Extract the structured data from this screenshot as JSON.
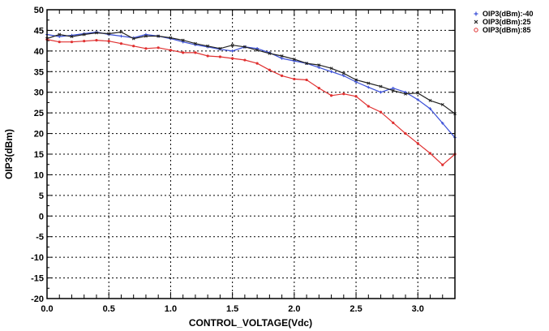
{
  "chart_data": {
    "type": "line",
    "xlabel": "CONTROL_VOLTAGE(Vdc)",
    "ylabel": "OIP3(dBm)",
    "xlim": [
      0,
      3.3
    ],
    "ylim": [
      -20,
      50
    ],
    "xticks": [
      0.0,
      0.5,
      1.0,
      1.5,
      2.0,
      2.5,
      3.0
    ],
    "xtick_labels": [
      "0.0",
      "0.5",
      "1.0",
      "1.5",
      "2.0",
      "2.5",
      "3.0"
    ],
    "yticks": [
      -20,
      -15,
      -10,
      -5,
      0,
      5,
      10,
      15,
      20,
      25,
      30,
      35,
      40,
      45,
      50
    ],
    "ytick_labels": [
      "-20",
      "-15",
      "-10",
      "-5",
      "0",
      "5",
      "10",
      "15",
      "20",
      "25",
      "30",
      "35",
      "40",
      "45",
      "50"
    ],
    "grid": true,
    "legend_position": "top-right-outside",
    "series": [
      {
        "name": "OIP3(dBm):-40",
        "color": "#3a4fd8",
        "marker": "+",
        "x": [
          0,
          0.1,
          0.2,
          0.3,
          0.4,
          0.5,
          0.6,
          0.7,
          0.8,
          0.9,
          1.0,
          1.1,
          1.2,
          1.3,
          1.4,
          1.5,
          1.6,
          1.7,
          1.8,
          1.9,
          2.0,
          2.1,
          2.2,
          2.3,
          2.4,
          2.5,
          2.6,
          2.7,
          2.8,
          2.9,
          3.0,
          3.1,
          3.2,
          3.3
        ],
        "y": [
          44.0,
          43.5,
          43.8,
          44.2,
          44.6,
          44.0,
          43.6,
          43.2,
          44.0,
          43.6,
          43.0,
          42.2,
          41.5,
          41.0,
          40.4,
          40.0,
          41.0,
          40.6,
          39.6,
          38.2,
          37.6,
          37.0,
          36.0,
          35.0,
          34.0,
          32.5,
          31.2,
          30.0,
          31.0,
          30.0,
          28.2,
          26.0,
          22.5,
          19.0
        ]
      },
      {
        "name": "OIP3(dBm):25",
        "color": "#222222",
        "marker": "x",
        "x": [
          0,
          0.1,
          0.2,
          0.3,
          0.4,
          0.5,
          0.6,
          0.7,
          0.8,
          0.9,
          1.0,
          1.1,
          1.2,
          1.3,
          1.4,
          1.5,
          1.6,
          1.7,
          1.8,
          1.9,
          2.0,
          2.1,
          2.2,
          2.3,
          2.4,
          2.5,
          2.6,
          2.7,
          2.8,
          2.9,
          3.0,
          3.1,
          3.2,
          3.3
        ],
        "y": [
          43.0,
          44.0,
          43.5,
          44.0,
          44.4,
          44.2,
          44.6,
          43.0,
          43.6,
          43.6,
          43.2,
          42.6,
          41.8,
          41.2,
          40.6,
          41.4,
          41.0,
          40.2,
          39.4,
          38.8,
          38.0,
          37.0,
          36.6,
          35.8,
          34.6,
          33.0,
          32.2,
          31.4,
          30.4,
          29.6,
          29.8,
          28.0,
          27.0,
          24.8
        ]
      },
      {
        "name": "OIP3(dBm):85",
        "color": "#e03030",
        "marker": "o",
        "x": [
          0,
          0.1,
          0.2,
          0.3,
          0.4,
          0.5,
          0.6,
          0.7,
          0.8,
          0.9,
          1.0,
          1.1,
          1.2,
          1.3,
          1.4,
          1.5,
          1.6,
          1.7,
          1.8,
          1.9,
          2.0,
          2.1,
          2.2,
          2.3,
          2.4,
          2.5,
          2.6,
          2.7,
          2.8,
          2.9,
          3.0,
          3.1,
          3.2,
          3.3
        ],
        "y": [
          42.8,
          42.2,
          42.2,
          42.4,
          42.6,
          42.4,
          41.8,
          41.2,
          40.6,
          40.8,
          40.2,
          39.6,
          39.6,
          38.8,
          38.6,
          38.2,
          37.8,
          37.0,
          35.4,
          34.0,
          33.2,
          33.0,
          31.0,
          29.2,
          29.6,
          29.0,
          26.6,
          25.2,
          22.6,
          20.0,
          17.6,
          15.2,
          12.4,
          15.0
        ]
      }
    ]
  }
}
